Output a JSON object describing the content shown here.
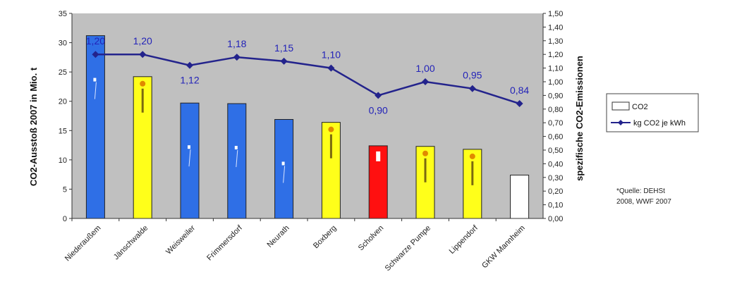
{
  "chart_data": {
    "type": "bar",
    "categories": [
      "Niederaußem",
      "Jänschwalde",
      "Weisweiler",
      "Frimmersdorf",
      "Neurath",
      "Boxberg",
      "Scholven",
      "Schwarze Pumpe",
      "Lippendorf",
      "GKW Mannheim"
    ],
    "series": [
      {
        "name": "CO2",
        "type": "bar",
        "axis": "left",
        "values": [
          31.2,
          24.2,
          19.7,
          19.6,
          16.9,
          16.4,
          12.4,
          12.3,
          11.8,
          7.4
        ],
        "colors": [
          "#2f6fe6",
          "#ffff1a",
          "#2f6fe6",
          "#2f6fe6",
          "#2f6fe6",
          "#ffff1a",
          "#ff1010",
          "#ffff1a",
          "#ffff1a",
          "#ffffff"
        ]
      },
      {
        "name": "kg CO2 je kWh",
        "type": "line",
        "axis": "right",
        "values": [
          1.2,
          1.2,
          1.12,
          1.18,
          1.15,
          1.1,
          0.9,
          1.0,
          0.95,
          0.84
        ],
        "labels": [
          "1,20",
          "1,20",
          "1,12",
          "1,18",
          "1,15",
          "1,10",
          "0,90",
          "1,00",
          "0,95",
          "0,84"
        ],
        "color": "#23238c"
      }
    ],
    "ylabel": "CO2-Ausstoß 2007 in Mio. t",
    "ylabel_right": "spezifische CO2-Emissionen",
    "ylim": [
      0,
      35
    ],
    "y_ticks": [
      "0",
      "5",
      "10",
      "15",
      "20",
      "25",
      "30",
      "35"
    ],
    "ylim_right": [
      0,
      1.5
    ],
    "y_right_ticks": [
      "0,00",
      "0,10",
      "0,20",
      "0,30",
      "0,40",
      "0,50",
      "0,60",
      "0,70",
      "0,80",
      "0,90",
      "1,00",
      "1,10",
      "1,20",
      "1,30",
      "1,40",
      "1,50"
    ],
    "grid": false,
    "plot_background": "#c0c0c0",
    "legend_position": "right"
  },
  "note": {
    "line1": "*Quelle: DEHSt",
    "line2": "2008, WWF 2007"
  }
}
